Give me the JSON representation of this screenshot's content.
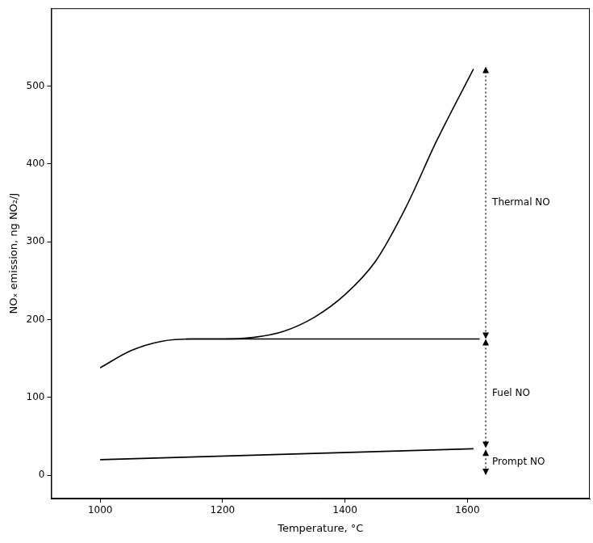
{
  "chart_data": {
    "type": "line",
    "x_label": "Temperature, °C",
    "y_label": "NOₓ emission, ng NO₂/J",
    "xlim": [
      920,
      1800
    ],
    "ylim": [
      -30,
      600
    ],
    "xticks": [
      1000,
      1200,
      1400,
      1600
    ],
    "yticks": [
      0,
      100,
      200,
      300,
      400,
      500
    ],
    "grid": false,
    "series": [
      {
        "color": "#000000",
        "line_style": "solid",
        "x": [
          1000,
          1050,
          1100,
          1150,
          1200,
          1250,
          1300,
          1350,
          1400,
          1450,
          1500,
          1550,
          1610
        ],
        "values": [
          138,
          160,
          172,
          175,
          175,
          177,
          185,
          203,
          232,
          275,
          345,
          430,
          522
        ]
      },
      {
        "color": "#000000",
        "line_style": "solid",
        "x": [
          1140,
          1620
        ],
        "values": [
          175,
          175
        ]
      },
      {
        "color": "#000000",
        "line_style": "solid",
        "x": [
          1000,
          1610
        ],
        "values": [
          20,
          34
        ]
      }
    ],
    "ranges": [
      {
        "label": "Thermal NO",
        "x": 1630,
        "from": 175,
        "to": 525
      },
      {
        "label": "Fuel NO",
        "x": 1630,
        "from": 35,
        "to": 175
      },
      {
        "label": "Prompt NO",
        "x": 1630,
        "from": 0,
        "to": 33
      }
    ]
  }
}
